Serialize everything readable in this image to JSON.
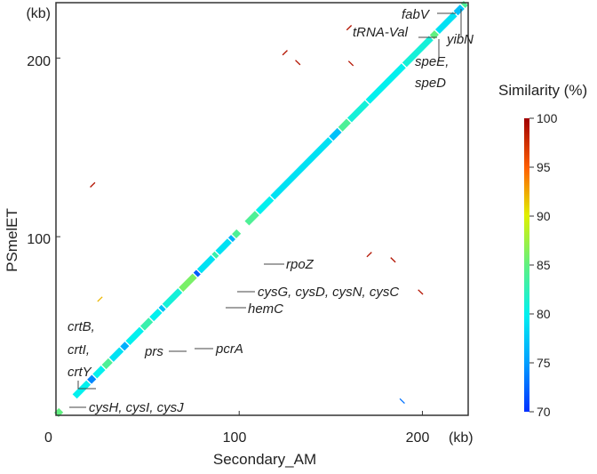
{
  "chart_data": {
    "type": "scatter",
    "subtype": "dot-plot",
    "xlabel": "Secondary_AM",
    "ylabel": "PSmelET",
    "x_unit": "(kb)",
    "y_unit": "(kb)",
    "xlim": [
      0,
      225
    ],
    "ylim": [
      0,
      231
    ],
    "x_ticks": [
      "0",
      "100",
      "200"
    ],
    "x_tick_values": [
      0,
      100,
      200
    ],
    "y_ticks": [
      "100",
      "200"
    ],
    "y_tick_values": [
      100,
      200
    ],
    "grid": false,
    "colorbar": {
      "title": "Similarity (%)",
      "range": [
        70,
        100
      ],
      "ticks": [
        "100",
        "95",
        "90",
        "85",
        "80",
        "75",
        "70"
      ],
      "tick_values": [
        100,
        95,
        90,
        85,
        80,
        75,
        70
      ],
      "colormap": "jet",
      "placement": "right"
    },
    "diagonal_segments": [
      {
        "x": [
          0,
          3
        ],
        "similarity": 85
      },
      {
        "x": [
          10,
          18
        ],
        "similarity": 80
      },
      {
        "x": [
          18,
          21
        ],
        "similarity": 74
      },
      {
        "x": [
          21,
          26
        ],
        "similarity": 80
      },
      {
        "x": [
          26,
          30
        ],
        "similarity": 84
      },
      {
        "x": [
          30,
          36
        ],
        "similarity": 79
      },
      {
        "x": [
          36,
          39
        ],
        "similarity": 76
      },
      {
        "x": [
          39,
          47
        ],
        "similarity": 80
      },
      {
        "x": [
          47,
          52
        ],
        "similarity": 83
      },
      {
        "x": [
          52,
          57
        ],
        "similarity": 80
      },
      {
        "x": [
          57,
          59
        ],
        "similarity": 77
      },
      {
        "x": [
          59,
          68
        ],
        "similarity": 81
      },
      {
        "x": [
          68,
          76
        ],
        "similarity": 86
      },
      {
        "x": [
          76,
          78
        ],
        "similarity": 72
      },
      {
        "x": [
          78,
          86
        ],
        "similarity": 79
      },
      {
        "x": [
          86,
          88
        ],
        "similarity": 83
      },
      {
        "x": [
          88,
          95
        ],
        "similarity": 79
      },
      {
        "x": [
          95,
          97
        ],
        "similarity": 76
      },
      {
        "x": [
          97,
          100
        ],
        "similarity": 84
      },
      {
        "x": [
          104,
          110
        ],
        "similarity": 84
      },
      {
        "x": [
          110,
          118
        ],
        "similarity": 80
      },
      {
        "x": [
          118,
          150
        ],
        "similarity": 79
      },
      {
        "x": [
          150,
          155
        ],
        "similarity": 77
      },
      {
        "x": [
          155,
          160
        ],
        "similarity": 84
      },
      {
        "x": [
          160,
          170
        ],
        "similarity": 81
      },
      {
        "x": [
          170,
          190
        ],
        "similarity": 80
      },
      {
        "x": [
          190,
          205
        ],
        "similarity": 81
      },
      {
        "x": [
          205,
          208
        ],
        "similarity": 85
      },
      {
        "x": [
          208,
          218
        ],
        "similarity": 79
      },
      {
        "x": [
          218,
          222
        ],
        "similarity": 77
      },
      {
        "x": [
          222,
          224
        ],
        "similarity": 84
      }
    ],
    "off_diagonal_hits": [
      {
        "x": 125,
        "y": 203,
        "orientation": "forward",
        "similarity": 99
      },
      {
        "x": 132,
        "y": 197.5,
        "orientation": "reverse",
        "similarity": 99
      },
      {
        "x": 161,
        "y": 197,
        "orientation": "reverse",
        "similarity": 99
      },
      {
        "x": 160,
        "y": 217,
        "orientation": "forward",
        "similarity": 99
      },
      {
        "x": 20,
        "y": 129,
        "orientation": "forward",
        "similarity": 99
      },
      {
        "x": 24,
        "y": 65,
        "orientation": "forward",
        "similarity": 92
      },
      {
        "x": 171,
        "y": 90,
        "orientation": "forward",
        "similarity": 99
      },
      {
        "x": 184,
        "y": 87,
        "orientation": "reverse",
        "similarity": 99
      },
      {
        "x": 199,
        "y": 69,
        "orientation": "reverse",
        "similarity": 99
      },
      {
        "x": 189,
        "y": 8,
        "orientation": "reverse",
        "similarity": 73
      }
    ],
    "annotations": [
      {
        "id": "fabV",
        "text": "fabV"
      },
      {
        "id": "yibN",
        "text": "yibN"
      },
      {
        "id": "trna",
        "text": "tRNA-Val"
      },
      {
        "id": "speE",
        "text": "speE,"
      },
      {
        "id": "speD",
        "text": "speD"
      },
      {
        "id": "rpoZ",
        "text": "rpoZ"
      },
      {
        "id": "cysG",
        "text": "cysG, cysD, cysN, cysC"
      },
      {
        "id": "hemC",
        "text": "hemC"
      },
      {
        "id": "pcrA",
        "text": "pcrA"
      },
      {
        "id": "prs",
        "text": "prs"
      },
      {
        "id": "crtB",
        "text": "crtB,"
      },
      {
        "id": "crtI",
        "text": "crtI,"
      },
      {
        "id": "crtY",
        "text": "crtY"
      },
      {
        "id": "cysH",
        "text": "cysH, cysI, cysJ"
      }
    ]
  }
}
